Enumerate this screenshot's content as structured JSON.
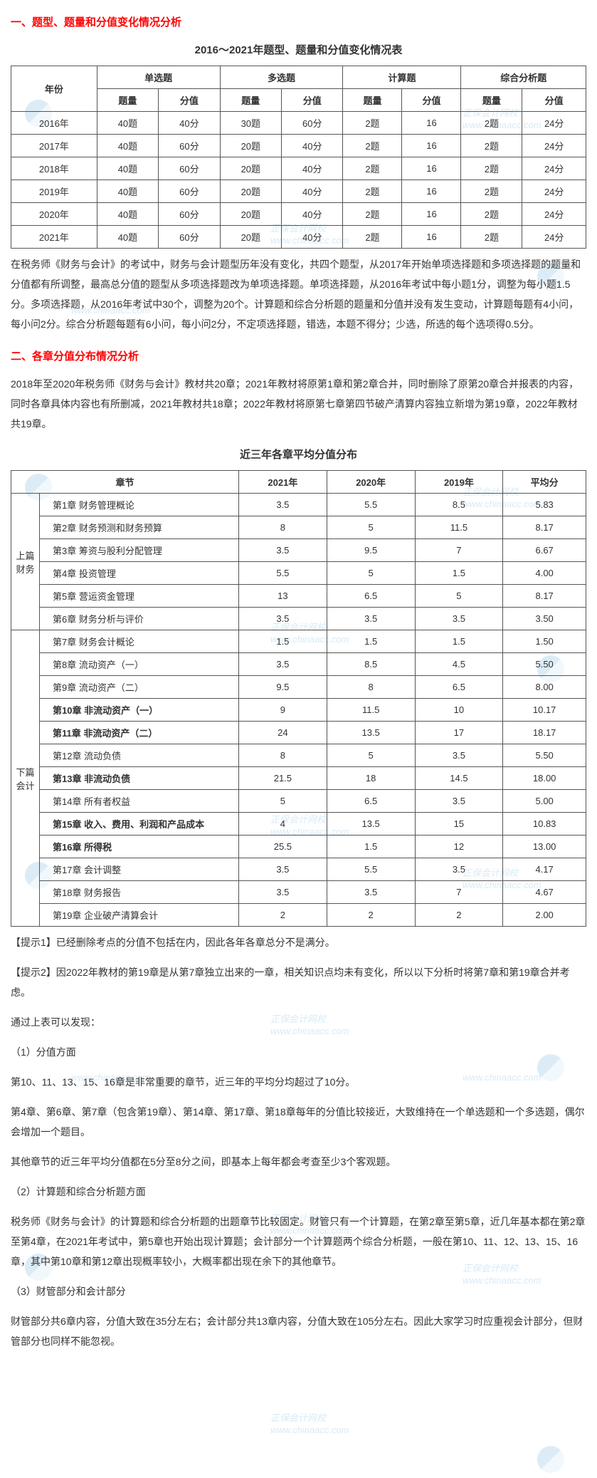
{
  "section1_heading": "一、题型、题量和分值变化情况分析",
  "table1_title": "2016～2021年题型、题量和分值变化情况表",
  "table1": {
    "year_header": "年份",
    "groups": [
      "单选题",
      "多选题",
      "计算题",
      "综合分析题"
    ],
    "sub_headers": [
      "题量",
      "分值"
    ],
    "rows": [
      {
        "year": "2016年",
        "single_q": "40题",
        "single_s": "40分",
        "multi_q": "30题",
        "multi_s": "60分",
        "calc_q": "2题",
        "calc_s": "16",
        "comp_q": "2题",
        "comp_s": "24分"
      },
      {
        "year": "2017年",
        "single_q": "40题",
        "single_s": "60分",
        "multi_q": "20题",
        "multi_s": "40分",
        "calc_q": "2题",
        "calc_s": "16",
        "comp_q": "2题",
        "comp_s": "24分"
      },
      {
        "year": "2018年",
        "single_q": "40题",
        "single_s": "60分",
        "multi_q": "20题",
        "multi_s": "40分",
        "calc_q": "2题",
        "calc_s": "16",
        "comp_q": "2题",
        "comp_s": "24分"
      },
      {
        "year": "2019年",
        "single_q": "40题",
        "single_s": "60分",
        "multi_q": "20题",
        "multi_s": "40分",
        "calc_q": "2题",
        "calc_s": "16",
        "comp_q": "2题",
        "comp_s": "24分"
      },
      {
        "year": "2020年",
        "single_q": "40题",
        "single_s": "60分",
        "multi_q": "20题",
        "multi_s": "40分",
        "calc_q": "2题",
        "calc_s": "16",
        "comp_q": "2题",
        "comp_s": "24分"
      },
      {
        "year": "2021年",
        "single_q": "40题",
        "single_s": "60分",
        "multi_q": "20题",
        "multi_s": "40分",
        "calc_q": "2题",
        "calc_s": "16",
        "comp_q": "2题",
        "comp_s": "24分"
      }
    ]
  },
  "para1": "在税务师《财务与会计》的考试中，财务与会计题型历年没有变化，共四个题型，从2017年开始单项选择题和多项选择题的题量和分值都有所调整，最高总分值的题型从多项选择题改为单项选择题。单项选择题，从2016年考试中每小题1分，调整为每小题1.5分。多项选择题，从2016年考试中30个，调整为20个。计算题和综合分析题的题量和分值并没有发生变动，计算题每题有4小问，每小问2分。综合分析题每题有6小问，每小问2分，不定项选择题，错选，本题不得分；少选，所选的每个选项得0.5分。",
  "section2_heading": "二、各章分值分布情况分析",
  "para2": "2018年至2020年税务师《财务与会计》教材共20章；2021年教材将原第1章和第2章合并，同时删除了原第20章合并报表的内容，同时各章具体内容也有所删减，2021年教材共18章；2022年教材将原第七章第四节破产清算内容独立新增为第19章，2022年教材共19章。",
  "table2_title": "近三年各章平均分值分布",
  "table2": {
    "headers": [
      "章节",
      "2021年",
      "2020年",
      "2019年",
      "平均分"
    ],
    "section_upper": "上篇财务",
    "section_lower": "下篇会计",
    "upper_rows": [
      {
        "ch": "第1章 财务管理概论",
        "y21": "3.5",
        "y20": "5.5",
        "y19": "8.5",
        "avg": "5.83",
        "bold": false
      },
      {
        "ch": "第2章 财务预测和财务预算",
        "y21": "8",
        "y20": "5",
        "y19": "11.5",
        "avg": "8.17",
        "bold": false
      },
      {
        "ch": "第3章 筹资与股利分配管理",
        "y21": "3.5",
        "y20": "9.5",
        "y19": "7",
        "avg": "6.67",
        "bold": false
      },
      {
        "ch": "第4章 投资管理",
        "y21": "5.5",
        "y20": "5",
        "y19": "1.5",
        "avg": "4.00",
        "bold": false
      },
      {
        "ch": "第5章 营运资金管理",
        "y21": "13",
        "y20": "6.5",
        "y19": "5",
        "avg": "8.17",
        "bold": false
      },
      {
        "ch": "第6章 财务分析与评价",
        "y21": "3.5",
        "y20": "3.5",
        "y19": "3.5",
        "avg": "3.50",
        "bold": false
      }
    ],
    "lower_rows": [
      {
        "ch": "第7章 财务会计概论",
        "y21": "1.5",
        "y20": "1.5",
        "y19": "1.5",
        "avg": "1.50",
        "bold": false
      },
      {
        "ch": "第8章 流动资产（一）",
        "y21": "3.5",
        "y20": "8.5",
        "y19": "4.5",
        "avg": "5.50",
        "bold": false
      },
      {
        "ch": "第9章 流动资产（二）",
        "y21": "9.5",
        "y20": "8",
        "y19": "6.5",
        "avg": "8.00",
        "bold": false
      },
      {
        "ch": "第10章 非流动资产（一）",
        "y21": "9",
        "y20": "11.5",
        "y19": "10",
        "avg": "10.17",
        "bold": true
      },
      {
        "ch": "第11章 非流动资产（二）",
        "y21": "24",
        "y20": "13.5",
        "y19": "17",
        "avg": "18.17",
        "bold": true
      },
      {
        "ch": "第12章 流动负债",
        "y21": "8",
        "y20": "5",
        "y19": "3.5",
        "avg": "5.50",
        "bold": false
      },
      {
        "ch": "第13章 非流动负债",
        "y21": "21.5",
        "y20": "18",
        "y19": "14.5",
        "avg": "18.00",
        "bold": true
      },
      {
        "ch": "第14章 所有者权益",
        "y21": "5",
        "y20": "6.5",
        "y19": "3.5",
        "avg": "5.00",
        "bold": false
      },
      {
        "ch": "第15章 收入、费用、利润和产品成本",
        "y21": "4",
        "y20": "13.5",
        "y19": "15",
        "avg": "10.83",
        "bold": true
      },
      {
        "ch": "第16章 所得税",
        "y21": "25.5",
        "y20": "1.5",
        "y19": "12",
        "avg": "13.00",
        "bold": true
      },
      {
        "ch": "第17章 会计调整",
        "y21": "3.5",
        "y20": "5.5",
        "y19": "3.5",
        "avg": "4.17",
        "bold": false
      },
      {
        "ch": "第18章 财务报告",
        "y21": "3.5",
        "y20": "3.5",
        "y19": "7",
        "avg": "4.67",
        "bold": false
      },
      {
        "ch": "第19章 企业破产清算会计",
        "y21": "2",
        "y20": "2",
        "y19": "2",
        "avg": "2.00",
        "bold": false
      }
    ]
  },
  "tip1": "【提示1】已经删除考点的分值不包括在内，因此各年各章总分不是满分。",
  "tip2": "【提示2】因2022年教材的第19章是从第7章独立出来的一章，相关知识点均未有变化，所以以下分析时将第7章和第19章合并考虑。",
  "para_find": "通过上表可以发现：",
  "sub1_heading": "（1）分值方面",
  "sub1_p1": "第10、11、13、15、16章是非常重要的章节，近三年的平均分均超过了10分。",
  "sub1_p2": "第4章、第6章、第7章（包含第19章）、第14章、第17章、第18章每年的分值比较接近，大致维持在一个单选题和一个多选题，偶尔会增加一个题目。",
  "sub1_p3": "其他章节的近三年平均分值都在5分至8分之间，即基本上每年都会考查至少3个客观题。",
  "sub2_heading": "（2）计算题和综合分析题方面",
  "sub2_p1": "税务师《财务与会计》的计算题和综合分析题的出题章节比较固定。财管只有一个计算题，在第2章至第5章，近几年基本都在第2章至第4章，在2021年考试中，第5章也开始出现计算题；会计部分一个计算题两个综合分析题，一般在第10、11、12、13、15、16章，其中第10章和第12章出现概率较小，大概率都出现在余下的其他章节。",
  "sub3_heading": "（3）财管部分和会计部分",
  "sub3_p1": "财管部分共6章内容，分值大致在35分左右；会计部分共13章内容，分值大致在105分左右。因此大家学习时应重视会计部分，但财管部分也同样不能忽视。",
  "wm_text_cn": "正保会计网校",
  "wm_text_en": "www.chinaacc.com"
}
